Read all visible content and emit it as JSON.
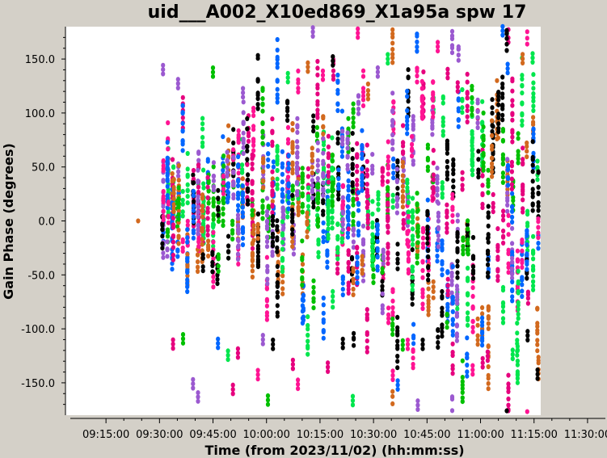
{
  "chart_data": {
    "type": "scatter",
    "title": "uid___A002_X10ed869_X1a95a spw 17",
    "xlabel": "Time (from 2023/11/02) (hh:mm:ss)",
    "ylabel": "Gain Phase (degrees)",
    "x_ticks": [
      "09:15:00",
      "09:30:00",
      "09:45:00",
      "10:00:00",
      "10:15:00",
      "10:30:00",
      "10:45:00",
      "11:00:00",
      "11:15:00",
      "11:30:00"
    ],
    "y_ticks": [
      "150.0",
      "100.0",
      "50.0",
      "0.0",
      "-50.0",
      "-100.0",
      "-150.0"
    ],
    "xlim": [
      "09:05:00",
      "11:35:00"
    ],
    "ylim": [
      -180,
      180
    ],
    "grid": false,
    "marker_colors": [
      "#000000",
      "#d2691e",
      "#00c000",
      "#e6007e",
      "#0066ff",
      "#9b59d0",
      "#00e64d",
      "#ff1493"
    ],
    "first_point": {
      "time": "09:24:00",
      "phase": 0.0
    },
    "scan_start": "09:31:00",
    "scan_end": "11:16:00",
    "scan_step_minutes": 1.4
  }
}
